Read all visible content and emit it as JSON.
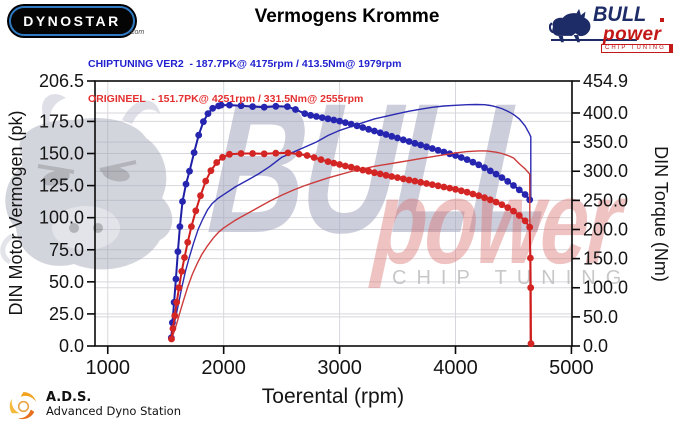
{
  "header": {
    "title": "Vermogens Kromme",
    "dynostar_logo": {
      "text": "DYNOSTAR",
      "suffix": ".com"
    },
    "bull_logo": {
      "brand": "BULL",
      "sub": "power",
      "tagline": "CHIP TUNING"
    },
    "legend": [
      {
        "label": "CHIPTUNING VER2  - 187.7PK@ 4175rpm / 413.5Nm@ 1979rpm",
        "color": "#2121cf"
      },
      {
        "label": "ORIGINEEL  - 151.7PK@ 4251rpm / 331.5Nm@ 2555rpm",
        "color": "#e43030"
      }
    ]
  },
  "watermark": {
    "bull": "BULL",
    "power": "power",
    "chip": "CHIP TUNING"
  },
  "footer": {
    "ads_abbr": "A.D.S.",
    "ads_name": "Advanced Dyno Station"
  },
  "chart_data": {
    "type": "line",
    "title": "Vermogens Kromme",
    "xlabel": "Toerental (rpm)",
    "ylabel_left": "DIN Motor Vermogen (pk)",
    "ylabel_right": "DIN Torque (Nm)",
    "x_range": [
      890,
      5005
    ],
    "left_max": 206.5,
    "right_max": 454.9,
    "grid": true,
    "x_ticks": [
      1000,
      2000,
      3000,
      4000,
      5000
    ],
    "left_ticks": [
      0,
      25,
      50,
      75,
      100,
      125,
      150,
      175,
      206.5
    ],
    "left_tick_labels": [
      "0.0",
      "25.0",
      "50.0",
      "75.0",
      "100.0",
      "125.0",
      "150.0",
      "175.0",
      "206.5"
    ],
    "right_ticks": [
      0,
      50,
      100,
      150,
      200,
      250,
      300,
      350,
      400,
      454.9
    ],
    "right_tick_labels": [
      "0.0",
      "50.0",
      "100.0",
      "150.0",
      "200.0",
      "250.0",
      "300.0",
      "350.0",
      "400.0",
      "454.9"
    ],
    "series": [
      {
        "name": "chiptuning-power-pk",
        "axis": "left",
        "unit": "pk",
        "color": "#2a2ab2",
        "width": 1.4,
        "markers": false,
        "peak": {
          "value": 187.7,
          "rpm": 4175
        },
        "points": [
          [
            1545,
            6
          ],
          [
            1555,
            10
          ],
          [
            1570,
            16
          ],
          [
            1590,
            24
          ],
          [
            1610,
            33
          ],
          [
            1640,
            46
          ],
          [
            1670,
            58
          ],
          [
            1700,
            68
          ],
          [
            1740,
            80
          ],
          [
            1780,
            91
          ],
          [
            1820,
            99
          ],
          [
            1860,
            106
          ],
          [
            1900,
            111
          ],
          [
            1950,
            115
          ],
          [
            2000,
            118
          ],
          [
            2100,
            124
          ],
          [
            2200,
            129
          ],
          [
            2300,
            134
          ],
          [
            2400,
            140
          ],
          [
            2500,
            147
          ],
          [
            2600,
            151
          ],
          [
            2700,
            155
          ],
          [
            2800,
            159
          ],
          [
            2900,
            164
          ],
          [
            3000,
            168
          ],
          [
            3100,
            171
          ],
          [
            3200,
            174
          ],
          [
            3300,
            177
          ],
          [
            3400,
            179
          ],
          [
            3500,
            181
          ],
          [
            3600,
            183
          ],
          [
            3700,
            184.5
          ],
          [
            3800,
            186
          ],
          [
            3900,
            187
          ],
          [
            4000,
            187.6
          ],
          [
            4100,
            188
          ],
          [
            4175,
            188.2
          ],
          [
            4250,
            188
          ],
          [
            4300,
            187.4
          ],
          [
            4350,
            186.4
          ],
          [
            4400,
            185
          ],
          [
            4450,
            183
          ],
          [
            4500,
            180.5
          ],
          [
            4550,
            177
          ],
          [
            4600,
            171.5
          ],
          [
            4640,
            165
          ],
          [
            4650,
            163
          ],
          [
            4650,
            113
          ]
        ]
      },
      {
        "name": "chiptuning-torque-nm",
        "axis": "right",
        "unit": "Nm",
        "color": "#1f1fa6",
        "marker_color": "#2525b0",
        "width": 2,
        "markers": true,
        "marker_radius": 3.4,
        "peak": {
          "value": 413.5,
          "rpm": 1979
        },
        "points": [
          [
            1548,
            14
          ],
          [
            1558,
            40
          ],
          [
            1572,
            75
          ],
          [
            1588,
            115
          ],
          [
            1605,
            162
          ],
          [
            1622,
            205
          ],
          [
            1645,
            248
          ],
          [
            1675,
            278
          ],
          [
            1705,
            300
          ],
          [
            1745,
            332
          ],
          [
            1785,
            362
          ],
          [
            1825,
            385
          ],
          [
            1865,
            399
          ],
          [
            1905,
            408
          ],
          [
            1955,
            412
          ],
          [
            1979,
            413.5
          ],
          [
            2050,
            413.5
          ],
          [
            2150,
            412.5
          ],
          [
            2250,
            411
          ],
          [
            2350,
            410
          ],
          [
            2450,
            411.5
          ],
          [
            2550,
            411
          ],
          [
            2620,
            406
          ],
          [
            2700,
            399
          ],
          [
            2750,
            396
          ],
          [
            2800,
            394
          ],
          [
            2850,
            392
          ],
          [
            2900,
            390
          ],
          [
            2950,
            388
          ],
          [
            3000,
            386
          ],
          [
            3050,
            383.5
          ],
          [
            3100,
            381
          ],
          [
            3150,
            378
          ],
          [
            3200,
            375
          ],
          [
            3250,
            372
          ],
          [
            3300,
            369
          ],
          [
            3350,
            366
          ],
          [
            3400,
            363
          ],
          [
            3450,
            360
          ],
          [
            3500,
            357
          ],
          [
            3550,
            354
          ],
          [
            3600,
            351
          ],
          [
            3650,
            348
          ],
          [
            3700,
            345
          ],
          [
            3750,
            342
          ],
          [
            3800,
            339
          ],
          [
            3850,
            336
          ],
          [
            3900,
            333
          ],
          [
            3950,
            330
          ],
          [
            4000,
            327
          ],
          [
            4050,
            323.5
          ],
          [
            4100,
            320
          ],
          [
            4150,
            315.5
          ],
          [
            4200,
            311
          ],
          [
            4250,
            306
          ],
          [
            4300,
            300.5
          ],
          [
            4350,
            295
          ],
          [
            4400,
            289
          ],
          [
            4450,
            282.5
          ],
          [
            4500,
            275.5
          ],
          [
            4550,
            268
          ],
          [
            4600,
            260
          ],
          [
            4640,
            251
          ]
        ]
      },
      {
        "name": "origineel-power-pk",
        "axis": "left",
        "unit": "pk",
        "color": "#cc3b3b",
        "width": 1.4,
        "markers": false,
        "peak": {
          "value": 151.7,
          "rpm": 4251
        },
        "points": [
          [
            1548,
            5
          ],
          [
            1560,
            8
          ],
          [
            1580,
            13
          ],
          [
            1600,
            19
          ],
          [
            1625,
            27
          ],
          [
            1655,
            36
          ],
          [
            1690,
            46
          ],
          [
            1730,
            56
          ],
          [
            1770,
            64
          ],
          [
            1810,
            71
          ],
          [
            1860,
            78
          ],
          [
            1910,
            84
          ],
          [
            1960,
            89
          ],
          [
            2000,
            92
          ],
          [
            2100,
            98
          ],
          [
            2200,
            103
          ],
          [
            2300,
            108
          ],
          [
            2400,
            113
          ],
          [
            2500,
            117.5
          ],
          [
            2600,
            121.5
          ],
          [
            2700,
            125
          ],
          [
            2800,
            128
          ],
          [
            2900,
            131
          ],
          [
            3000,
            133.5
          ],
          [
            3100,
            136
          ],
          [
            3200,
            138
          ],
          [
            3300,
            140
          ],
          [
            3400,
            141.5
          ],
          [
            3500,
            143
          ],
          [
            3600,
            144.5
          ],
          [
            3700,
            146
          ],
          [
            3800,
            147.5
          ],
          [
            3900,
            149
          ],
          [
            4000,
            150.5
          ],
          [
            4100,
            151.5
          ],
          [
            4200,
            152
          ],
          [
            4270,
            152
          ],
          [
            4350,
            151
          ],
          [
            4400,
            150
          ],
          [
            4450,
            148.5
          ],
          [
            4500,
            146.5
          ],
          [
            4550,
            142
          ],
          [
            4600,
            138
          ],
          [
            4640,
            134
          ],
          [
            4645,
            0
          ]
        ]
      },
      {
        "name": "origineel-torque-nm",
        "axis": "right",
        "unit": "Nm",
        "color": "#cf1d1d",
        "marker_color": "#d42525",
        "width": 2,
        "markers": true,
        "marker_radius": 3.4,
        "peak": {
          "value": 331.5,
          "rpm": 2555
        },
        "points": [
          [
            1550,
            12
          ],
          [
            1562,
            30
          ],
          [
            1578,
            52
          ],
          [
            1595,
            75
          ],
          [
            1615,
            100
          ],
          [
            1638,
            128
          ],
          [
            1662,
            152
          ],
          [
            1690,
            178
          ],
          [
            1722,
            205
          ],
          [
            1760,
            232
          ],
          [
            1800,
            258
          ],
          [
            1845,
            283
          ],
          [
            1890,
            301
          ],
          [
            1940,
            315
          ],
          [
            1990,
            324
          ],
          [
            2050,
            329
          ],
          [
            2150,
            330.5
          ],
          [
            2250,
            330.5
          ],
          [
            2350,
            330
          ],
          [
            2450,
            331
          ],
          [
            2555,
            331.5
          ],
          [
            2650,
            329.5
          ],
          [
            2720,
            327
          ],
          [
            2780,
            323.5
          ],
          [
            2840,
            320
          ],
          [
            2900,
            316.5
          ],
          [
            2950,
            314
          ],
          [
            3000,
            311.5
          ],
          [
            3050,
            309
          ],
          [
            3100,
            307
          ],
          [
            3150,
            304.5
          ],
          [
            3200,
            302
          ],
          [
            3250,
            300
          ],
          [
            3300,
            297.5
          ],
          [
            3350,
            295.5
          ],
          [
            3400,
            293
          ],
          [
            3450,
            291
          ],
          [
            3500,
            289
          ],
          [
            3550,
            287
          ],
          [
            3600,
            285
          ],
          [
            3650,
            283
          ],
          [
            3700,
            281
          ],
          [
            3750,
            279
          ],
          [
            3800,
            277
          ],
          [
            3850,
            275
          ],
          [
            3900,
            273
          ],
          [
            3950,
            271
          ],
          [
            4000,
            269
          ],
          [
            4050,
            266.5
          ],
          [
            4100,
            264
          ],
          [
            4150,
            261
          ],
          [
            4200,
            258
          ],
          [
            4250,
            254.5
          ],
          [
            4300,
            251
          ],
          [
            4350,
            247
          ],
          [
            4400,
            242.5
          ],
          [
            4450,
            237.5
          ],
          [
            4500,
            231.5
          ],
          [
            4550,
            224
          ],
          [
            4600,
            215
          ],
          [
            4640,
            204
          ],
          [
            4646,
            151
          ],
          [
            4649,
            100
          ],
          [
            4651,
            4
          ]
        ]
      }
    ]
  }
}
